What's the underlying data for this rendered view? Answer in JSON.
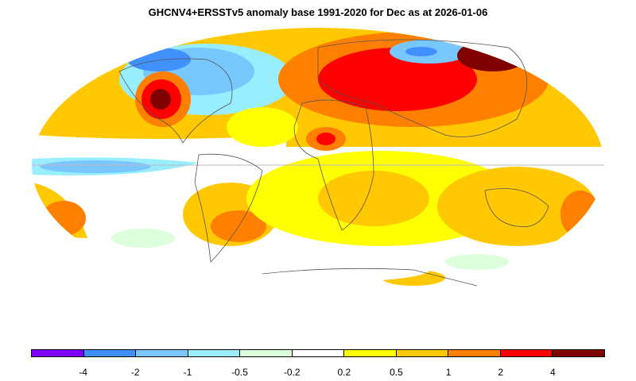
{
  "title": "GHCNV4+ERSSTv5 anomaly base 1991-2020 for Dec as at 2026-01-06",
  "legend": {
    "colors": [
      "#8000ff",
      "#4090ff",
      "#78c8ff",
      "#98eeff",
      "#dcffdc",
      "#ffffff",
      "#ffff00",
      "#ffc800",
      "#ff8000",
      "#ff0000",
      "#800000"
    ],
    "ticks": [
      "-4",
      "-2",
      "-1",
      "-0.5",
      "-0.2",
      "0.2",
      "0.5",
      "1",
      "2",
      "4"
    ]
  },
  "colors": {
    "land_outline": "#555555",
    "equator": "#bbbbbb"
  }
}
